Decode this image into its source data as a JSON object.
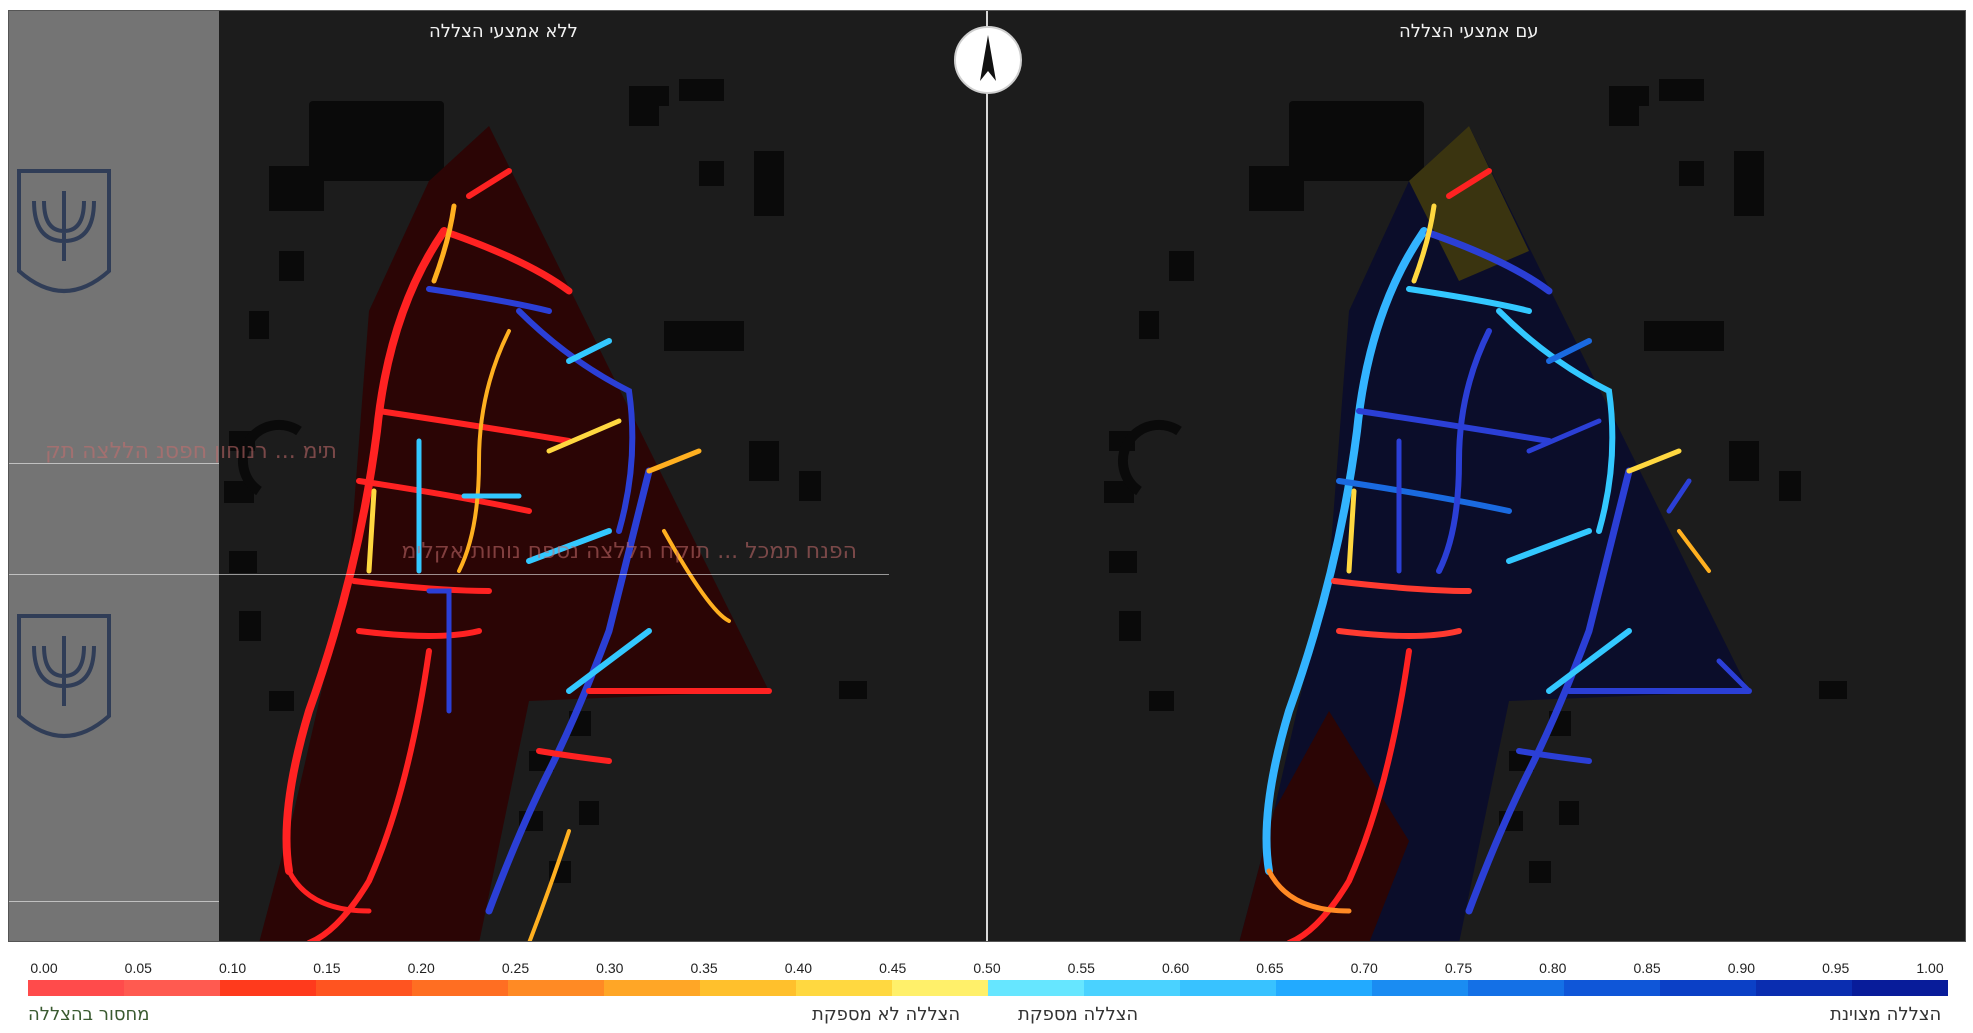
{
  "map": {
    "title_left": "ללא אמצעי הצללה",
    "title_right": "עם אמצעי הצללה",
    "ghost_text_1": "תימ ... רנוחון חפסנ הללצה תק",
    "ghost_text_2": "הפנח תמכל ... תוקח הללצה נספח נוחות אקלימ"
  },
  "legend": {
    "ticks": [
      "0.00",
      "0.05",
      "0.10",
      "0.15",
      "0.20",
      "0.25",
      "0.30",
      "0.35",
      "0.40",
      "0.45",
      "0.50",
      "0.55",
      "0.60",
      "0.65",
      "0.70",
      "0.75",
      "0.80",
      "0.85",
      "0.90",
      "0.95",
      "1.00"
    ],
    "colors": [
      "#ff4b4b",
      "#ff5a50",
      "#ff3a1c",
      "#ff5420",
      "#ff6e22",
      "#ff8a24",
      "#ffa626",
      "#ffc02c",
      "#ffd840",
      "#fff06a",
      "#66e6ff",
      "#4ad2ff",
      "#38c2ff",
      "#22aaff",
      "#1a8cf2",
      "#1470e6",
      "#0f56d8",
      "#0b40c6",
      "#0a2db0",
      "#081c9a"
    ],
    "class_labels": [
      {
        "text": "מחסור בהצללה",
        "color": "#3a5a30"
      },
      {
        "text": "הצללה לא מספקת",
        "color": "#333333"
      },
      {
        "text": "הצללה מספקת",
        "color": "#333333"
      },
      {
        "text": "הצללה מצוינת",
        "color": "#333333"
      }
    ]
  },
  "icons": {
    "north_arrow": "north-arrow-icon",
    "emblem": "state-emblem-icon"
  }
}
